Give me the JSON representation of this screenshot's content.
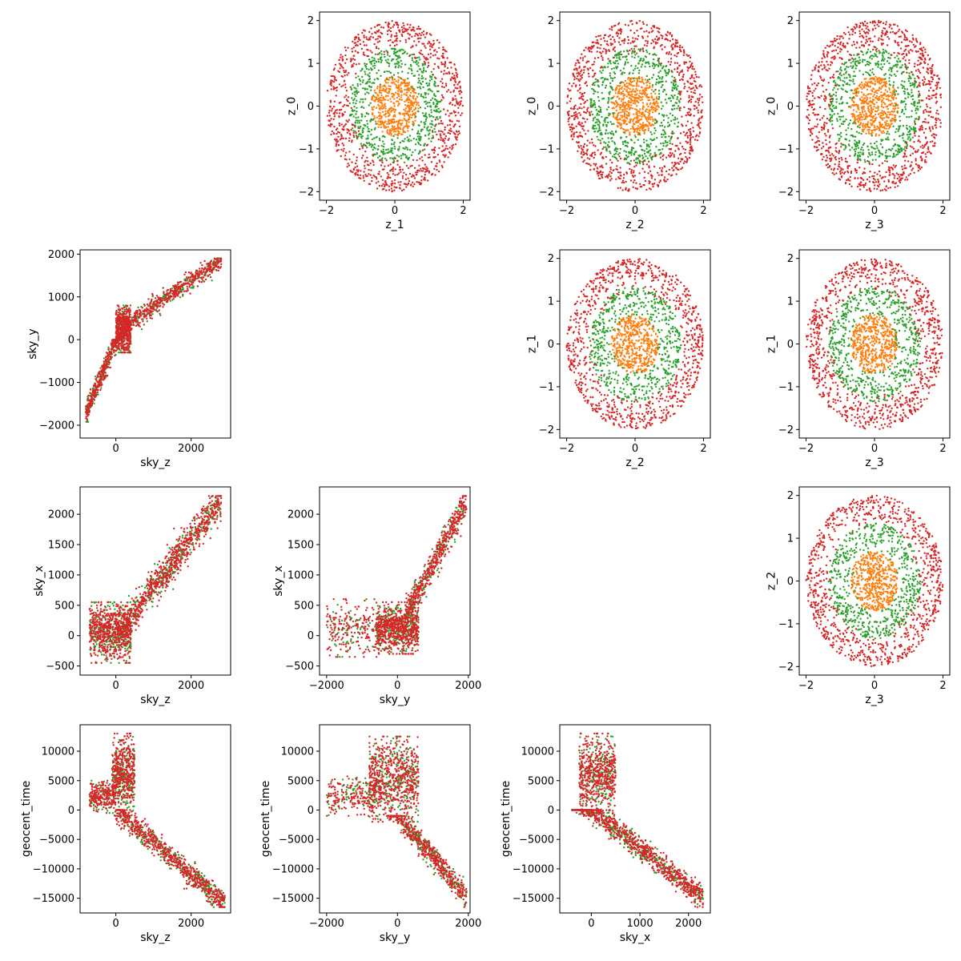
{
  "colors": {
    "orange": "#ff7f0e",
    "green": "#2ca02c",
    "red": "#d62728"
  },
  "chart_data": [
    {
      "type": "scatter",
      "panel": "z_1-z_0",
      "xlabel": "z_1",
      "ylabel": "z_0",
      "xlim": [
        -2.2,
        2.2
      ],
      "ylim": [
        -2.2,
        2.2
      ],
      "xticks": [
        -2,
        0,
        2
      ],
      "yticks": [
        -2,
        -1,
        0,
        1,
        2
      ],
      "x_tick_labels": [
        "−2",
        "0",
        "2"
      ],
      "y_tick_labels": [
        "−2",
        "−1",
        "0",
        "1",
        "2"
      ],
      "distribution": "radial-rings",
      "series": [
        {
          "color": "orange",
          "count": 500,
          "r_range": [
            0,
            0.7
          ]
        },
        {
          "color": "green",
          "count": 600,
          "r_range": [
            0.6,
            1.35
          ]
        },
        {
          "color": "red",
          "count": 900,
          "r_range": [
            1.2,
            2.0
          ]
        }
      ]
    },
    {
      "type": "scatter",
      "panel": "z_2-z_0",
      "xlabel": "z_2",
      "ylabel": "z_0",
      "xlim": [
        -2.2,
        2.2
      ],
      "ylim": [
        -2.2,
        2.2
      ],
      "xticks": [
        -2,
        0,
        2
      ],
      "yticks": [
        -2,
        -1,
        0,
        1,
        2
      ],
      "x_tick_labels": [
        "−2",
        "0",
        "2"
      ],
      "y_tick_labels": [
        "−2",
        "−1",
        "0",
        "1",
        "2"
      ],
      "distribution": "radial-rings",
      "series": [
        {
          "color": "orange",
          "count": 500,
          "r_range": [
            0,
            0.7
          ]
        },
        {
          "color": "green",
          "count": 600,
          "r_range": [
            0.6,
            1.35
          ]
        },
        {
          "color": "red",
          "count": 900,
          "r_range": [
            1.2,
            2.0
          ]
        }
      ]
    },
    {
      "type": "scatter",
      "panel": "z_3-z_0",
      "xlabel": "z_3",
      "ylabel": "z_0",
      "xlim": [
        -2.2,
        2.2
      ],
      "ylim": [
        -2.2,
        2.2
      ],
      "xticks": [
        -2,
        0,
        2
      ],
      "yticks": [
        -2,
        -1,
        0,
        1,
        2
      ],
      "x_tick_labels": [
        "−2",
        "0",
        "2"
      ],
      "y_tick_labels": [
        "−2",
        "−1",
        "0",
        "1",
        "2"
      ],
      "distribution": "radial-rings",
      "series": [
        {
          "color": "orange",
          "count": 500,
          "r_range": [
            0,
            0.7
          ]
        },
        {
          "color": "green",
          "count": 600,
          "r_range": [
            0.6,
            1.35
          ]
        },
        {
          "color": "red",
          "count": 900,
          "r_range": [
            1.2,
            2.0
          ]
        }
      ]
    },
    {
      "type": "scatter",
      "panel": "sky_z-sky_y",
      "xlabel": "sky_z",
      "ylabel": "sky_y",
      "xlim": [
        -950,
        3050
      ],
      "ylim": [
        -2300,
        2100
      ],
      "xticks": [
        0,
        2000
      ],
      "yticks": [
        -2000,
        -1000,
        0,
        1000,
        2000
      ],
      "x_tick_labels": [
        "0",
        "2000"
      ],
      "y_tick_labels": [
        "−2000",
        "−1000",
        "0",
        "1000",
        "2000"
      ],
      "distribution": "anchors",
      "anchors": [
        {
          "weight": 0.35,
          "x": [
            0,
            400
          ],
          "y": [
            -300,
            800
          ]
        },
        {
          "weight": 0.25,
          "x": [
            -800,
            100
          ],
          "y": [
            -2100,
            0
          ],
          "linear": {
            "slope": 2.2,
            "intercept": 0
          }
        },
        {
          "weight": 0.4,
          "x": [
            200,
            2800
          ],
          "y": [
            200,
            1900
          ],
          "linear": {
            "slope": 0.6,
            "intercept": 180
          }
        }
      ],
      "series": [
        {
          "color": "green",
          "count": 500
        },
        {
          "color": "red",
          "count": 1300
        }
      ]
    },
    {
      "type": "scatter",
      "panel": "z_2-z_1",
      "xlabel": "z_2",
      "ylabel": "z_1",
      "xlim": [
        -2.2,
        2.2
      ],
      "ylim": [
        -2.2,
        2.2
      ],
      "xticks": [
        -2,
        0,
        2
      ],
      "yticks": [
        -2,
        -1,
        0,
        1,
        2
      ],
      "x_tick_labels": [
        "−2",
        "0",
        "2"
      ],
      "y_tick_labels": [
        "−2",
        "−1",
        "0",
        "1",
        "2"
      ],
      "distribution": "radial-rings",
      "series": [
        {
          "color": "orange",
          "count": 500,
          "r_range": [
            0,
            0.7
          ]
        },
        {
          "color": "green",
          "count": 600,
          "r_range": [
            0.6,
            1.35
          ]
        },
        {
          "color": "red",
          "count": 900,
          "r_range": [
            1.2,
            2.0
          ]
        }
      ]
    },
    {
      "type": "scatter",
      "panel": "z_3-z_1",
      "xlabel": "z_3",
      "ylabel": "z_1",
      "xlim": [
        -2.2,
        2.2
      ],
      "ylim": [
        -2.2,
        2.2
      ],
      "xticks": [
        -2,
        0,
        2
      ],
      "yticks": [
        -2,
        -1,
        0,
        1,
        2
      ],
      "x_tick_labels": [
        "−2",
        "0",
        "2"
      ],
      "y_tick_labels": [
        "−2",
        "−1",
        "0",
        "1",
        "2"
      ],
      "distribution": "radial-rings",
      "series": [
        {
          "color": "orange",
          "count": 500,
          "r_range": [
            0,
            0.7
          ]
        },
        {
          "color": "green",
          "count": 600,
          "r_range": [
            0.6,
            1.35
          ]
        },
        {
          "color": "red",
          "count": 900,
          "r_range": [
            1.2,
            2.0
          ]
        }
      ]
    },
    {
      "type": "scatter",
      "panel": "sky_z-sky_x",
      "xlabel": "sky_z",
      "ylabel": "sky_x",
      "xlim": [
        -950,
        3050
      ],
      "ylim": [
        -650,
        2450
      ],
      "xticks": [
        0,
        2000
      ],
      "yticks": [
        -500,
        0,
        500,
        1000,
        1500,
        2000
      ],
      "x_tick_labels": [
        "0",
        "2000"
      ],
      "y_tick_labels": [
        "−500",
        "0",
        "500",
        "1000",
        "1500",
        "2000"
      ],
      "distribution": "anchors",
      "anchors": [
        {
          "weight": 0.45,
          "x": [
            -700,
            400
          ],
          "y": [
            -450,
            550
          ]
        },
        {
          "weight": 0.55,
          "x": [
            200,
            2800
          ],
          "y": [
            0,
            2300
          ],
          "linear": {
            "slope": 0.8,
            "intercept": 0
          }
        }
      ],
      "series": [
        {
          "color": "green",
          "count": 500
        },
        {
          "color": "red",
          "count": 1300
        }
      ]
    },
    {
      "type": "scatter",
      "panel": "sky_y-sky_x",
      "xlabel": "sky_y",
      "ylabel": "sky_x",
      "xlim": [
        -2200,
        2050
      ],
      "ylim": [
        -650,
        2450
      ],
      "xticks": [
        -2000,
        0,
        2000
      ],
      "yticks": [
        -500,
        0,
        500,
        1000,
        1500,
        2000
      ],
      "x_tick_labels": [
        "−2000",
        "0",
        "2000"
      ],
      "y_tick_labels": [
        "−500",
        "0",
        "500",
        "1000",
        "1500",
        "2000"
      ],
      "distribution": "anchors",
      "anchors": [
        {
          "weight": 0.5,
          "x": [
            -600,
            600
          ],
          "y": [
            -300,
            550
          ]
        },
        {
          "weight": 0.15,
          "x": [
            -2000,
            -500
          ],
          "y": [
            -350,
            600
          ]
        },
        {
          "weight": 0.35,
          "x": [
            200,
            1950
          ],
          "y": [
            300,
            2300
          ],
          "linear": {
            "slope": 1.1,
            "intercept": 80
          }
        }
      ],
      "series": [
        {
          "color": "green",
          "count": 500
        },
        {
          "color": "red",
          "count": 1300
        }
      ]
    },
    {
      "type": "scatter",
      "panel": "z_3-z_2",
      "xlabel": "z_3",
      "ylabel": "z_2",
      "xlim": [
        -2.2,
        2.2
      ],
      "ylim": [
        -2.2,
        2.2
      ],
      "xticks": [
        -2,
        0,
        2
      ],
      "yticks": [
        -2,
        -1,
        0,
        1,
        2
      ],
      "x_tick_labels": [
        "−2",
        "0",
        "2"
      ],
      "y_tick_labels": [
        "−2",
        "−1",
        "0",
        "1",
        "2"
      ],
      "distribution": "radial-rings",
      "series": [
        {
          "color": "orange",
          "count": 500,
          "r_range": [
            0,
            0.7
          ]
        },
        {
          "color": "green",
          "count": 600,
          "r_range": [
            0.6,
            1.35
          ]
        },
        {
          "color": "red",
          "count": 900,
          "r_range": [
            1.2,
            2.0
          ]
        }
      ]
    },
    {
      "type": "scatter",
      "panel": "sky_z-geocent_time",
      "xlabel": "sky_z",
      "ylabel": "geocent_time",
      "xlim": [
        -950,
        3050
      ],
      "ylim": [
        -17500,
        14500
      ],
      "xticks": [
        0,
        2000
      ],
      "yticks": [
        -15000,
        -10000,
        -5000,
        0,
        5000,
        10000
      ],
      "x_tick_labels": [
        "0",
        "2000"
      ],
      "y_tick_labels": [
        "−15000",
        "−10000",
        "−5000",
        "0",
        "5000",
        "10000"
      ],
      "distribution": "anchors",
      "anchors": [
        {
          "weight": 0.35,
          "x": [
            -100,
            500
          ],
          "y": [
            -1000,
            13000
          ]
        },
        {
          "weight": 0.15,
          "x": [
            -700,
            0
          ],
          "y": [
            -500,
            5000
          ]
        },
        {
          "weight": 0.5,
          "x": [
            0,
            2900
          ],
          "y": [
            -16500,
            0
          ],
          "linear": {
            "slope": -5.5,
            "intercept": 0
          }
        }
      ],
      "series": [
        {
          "color": "green",
          "count": 500
        },
        {
          "color": "red",
          "count": 1300
        }
      ]
    },
    {
      "type": "scatter",
      "panel": "sky_y-geocent_time",
      "xlabel": "sky_y",
      "ylabel": "geocent_time",
      "xlim": [
        -2200,
        2050
      ],
      "ylim": [
        -17500,
        14500
      ],
      "xticks": [
        -2000,
        0,
        2000
      ],
      "yticks": [
        -15000,
        -10000,
        -5000,
        0,
        5000,
        10000
      ],
      "x_tick_labels": [
        "−2000",
        "0",
        "2000"
      ],
      "y_tick_labels": [
        "−15000",
        "−10000",
        "−5000",
        "0",
        "5000",
        "10000"
      ],
      "distribution": "anchors",
      "anchors": [
        {
          "weight": 0.45,
          "x": [
            -800,
            600
          ],
          "y": [
            -2000,
            12500
          ]
        },
        {
          "weight": 0.15,
          "x": [
            -2000,
            -500
          ],
          "y": [
            -1000,
            6000
          ]
        },
        {
          "weight": 0.4,
          "x": [
            -300,
            1950
          ],
          "y": [
            -16500,
            -1000
          ],
          "linear": {
            "slope": -7.0,
            "intercept": -1000
          }
        }
      ],
      "series": [
        {
          "color": "green",
          "count": 500
        },
        {
          "color": "red",
          "count": 1300
        }
      ]
    },
    {
      "type": "scatter",
      "panel": "sky_x-geocent_time",
      "xlabel": "sky_x",
      "ylabel": "geocent_time",
      "xlim": [
        -650,
        2450
      ],
      "ylim": [
        -17500,
        14500
      ],
      "xticks": [
        0,
        1000,
        2000
      ],
      "yticks": [
        -15000,
        -10000,
        -5000,
        0,
        5000,
        10000
      ],
      "x_tick_labels": [
        "0",
        "1000",
        "2000"
      ],
      "y_tick_labels": [
        "−15000",
        "−10000",
        "−5000",
        "0",
        "5000",
        "10000"
      ],
      "distribution": "anchors",
      "anchors": [
        {
          "weight": 0.4,
          "x": [
            -250,
            500
          ],
          "y": [
            -1000,
            13000
          ]
        },
        {
          "weight": 0.6,
          "x": [
            -400,
            2300
          ],
          "y": [
            -16500,
            0
          ],
          "linear": {
            "slope": -6.5,
            "intercept": 0
          }
        }
      ],
      "series": [
        {
          "color": "green",
          "count": 500
        },
        {
          "color": "red",
          "count": 1300
        }
      ]
    }
  ]
}
